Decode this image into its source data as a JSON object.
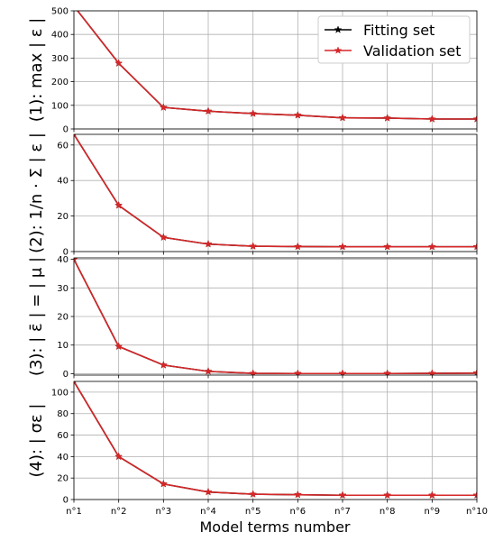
{
  "figure": {
    "xlabel": "Model terms number",
    "legend": {
      "placement": "top-right",
      "entries": [
        {
          "label": "Fitting set",
          "color": "#000000",
          "marker": "star"
        },
        {
          "label": "Validation set",
          "color": "#d62728",
          "marker": "star"
        }
      ]
    }
  },
  "chart_data": [
    {
      "type": "line",
      "ylabel": "(1): max | ε |",
      "x_categories": [
        "n°1",
        "n°2",
        "n°3",
        "n°4",
        "n°5",
        "n°6",
        "n°7",
        "n°8",
        "n°9",
        "n°10"
      ],
      "ylim": [
        0,
        500
      ],
      "yticks": [
        0,
        100,
        200,
        300,
        400,
        500
      ],
      "grid": true,
      "series": [
        {
          "name": "Fitting set",
          "color": "#000000",
          "values": [
            520,
            278,
            91,
            75,
            65,
            58,
            47,
            46,
            42,
            42
          ]
        },
        {
          "name": "Validation set",
          "color": "#d62728",
          "values": [
            520,
            278,
            91,
            75,
            65,
            58,
            47,
            46,
            42,
            42
          ]
        }
      ]
    },
    {
      "type": "line",
      "ylabel": "(2): 1/n · Σ | ε |",
      "x_categories": [
        "n°1",
        "n°2",
        "n°3",
        "n°4",
        "n°5",
        "n°6",
        "n°7",
        "n°8",
        "n°9",
        "n°10"
      ],
      "ylim": [
        0,
        66
      ],
      "yticks": [
        0,
        20,
        40,
        60
      ],
      "grid": true,
      "series": [
        {
          "name": "Fitting set",
          "color": "#000000",
          "values": [
            66,
            26,
            8,
            4.2,
            3,
            2.8,
            2.7,
            2.7,
            2.7,
            2.7
          ]
        },
        {
          "name": "Validation set",
          "color": "#d62728",
          "values": [
            66,
            26,
            8,
            4.2,
            3,
            2.8,
            2.7,
            2.7,
            2.7,
            2.7
          ]
        }
      ]
    },
    {
      "type": "line",
      "ylabel": "(3): | ε̄ | = | μ |",
      "x_categories": [
        "n°1",
        "n°2",
        "n°3",
        "n°4",
        "n°5",
        "n°6",
        "n°7",
        "n°8",
        "n°9",
        "n°10"
      ],
      "ylim": [
        -0.5,
        40.5
      ],
      "yticks": [
        0,
        10,
        20,
        30,
        40
      ],
      "grid": true,
      "series": [
        {
          "name": "Fitting set",
          "color": "#000000",
          "values": [
            40,
            9.5,
            3,
            0.8,
            0.1,
            0.05,
            0.05,
            0.05,
            0.1,
            0.2
          ]
        },
        {
          "name": "Validation set",
          "color": "#d62728",
          "values": [
            40,
            9.5,
            3,
            0.8,
            0.1,
            0.05,
            0.05,
            0.05,
            0.1,
            0.2
          ]
        }
      ]
    },
    {
      "type": "line",
      "ylabel": "(4): | σε |",
      "x_categories": [
        "n°1",
        "n°2",
        "n°3",
        "n°4",
        "n°5",
        "n°6",
        "n°7",
        "n°8",
        "n°9",
        "n°10"
      ],
      "ylim": [
        0,
        110
      ],
      "yticks": [
        0,
        20,
        40,
        60,
        80,
        100
      ],
      "grid": true,
      "series": [
        {
          "name": "Fitting set",
          "color": "#000000",
          "values": [
            110,
            40,
            14.5,
            7,
            5,
            4.5,
            4,
            4,
            4,
            4
          ]
        },
        {
          "name": "Validation set",
          "color": "#d62728",
          "values": [
            110,
            40,
            14.5,
            7,
            5,
            4.5,
            4,
            4,
            4,
            4
          ]
        }
      ]
    }
  ]
}
